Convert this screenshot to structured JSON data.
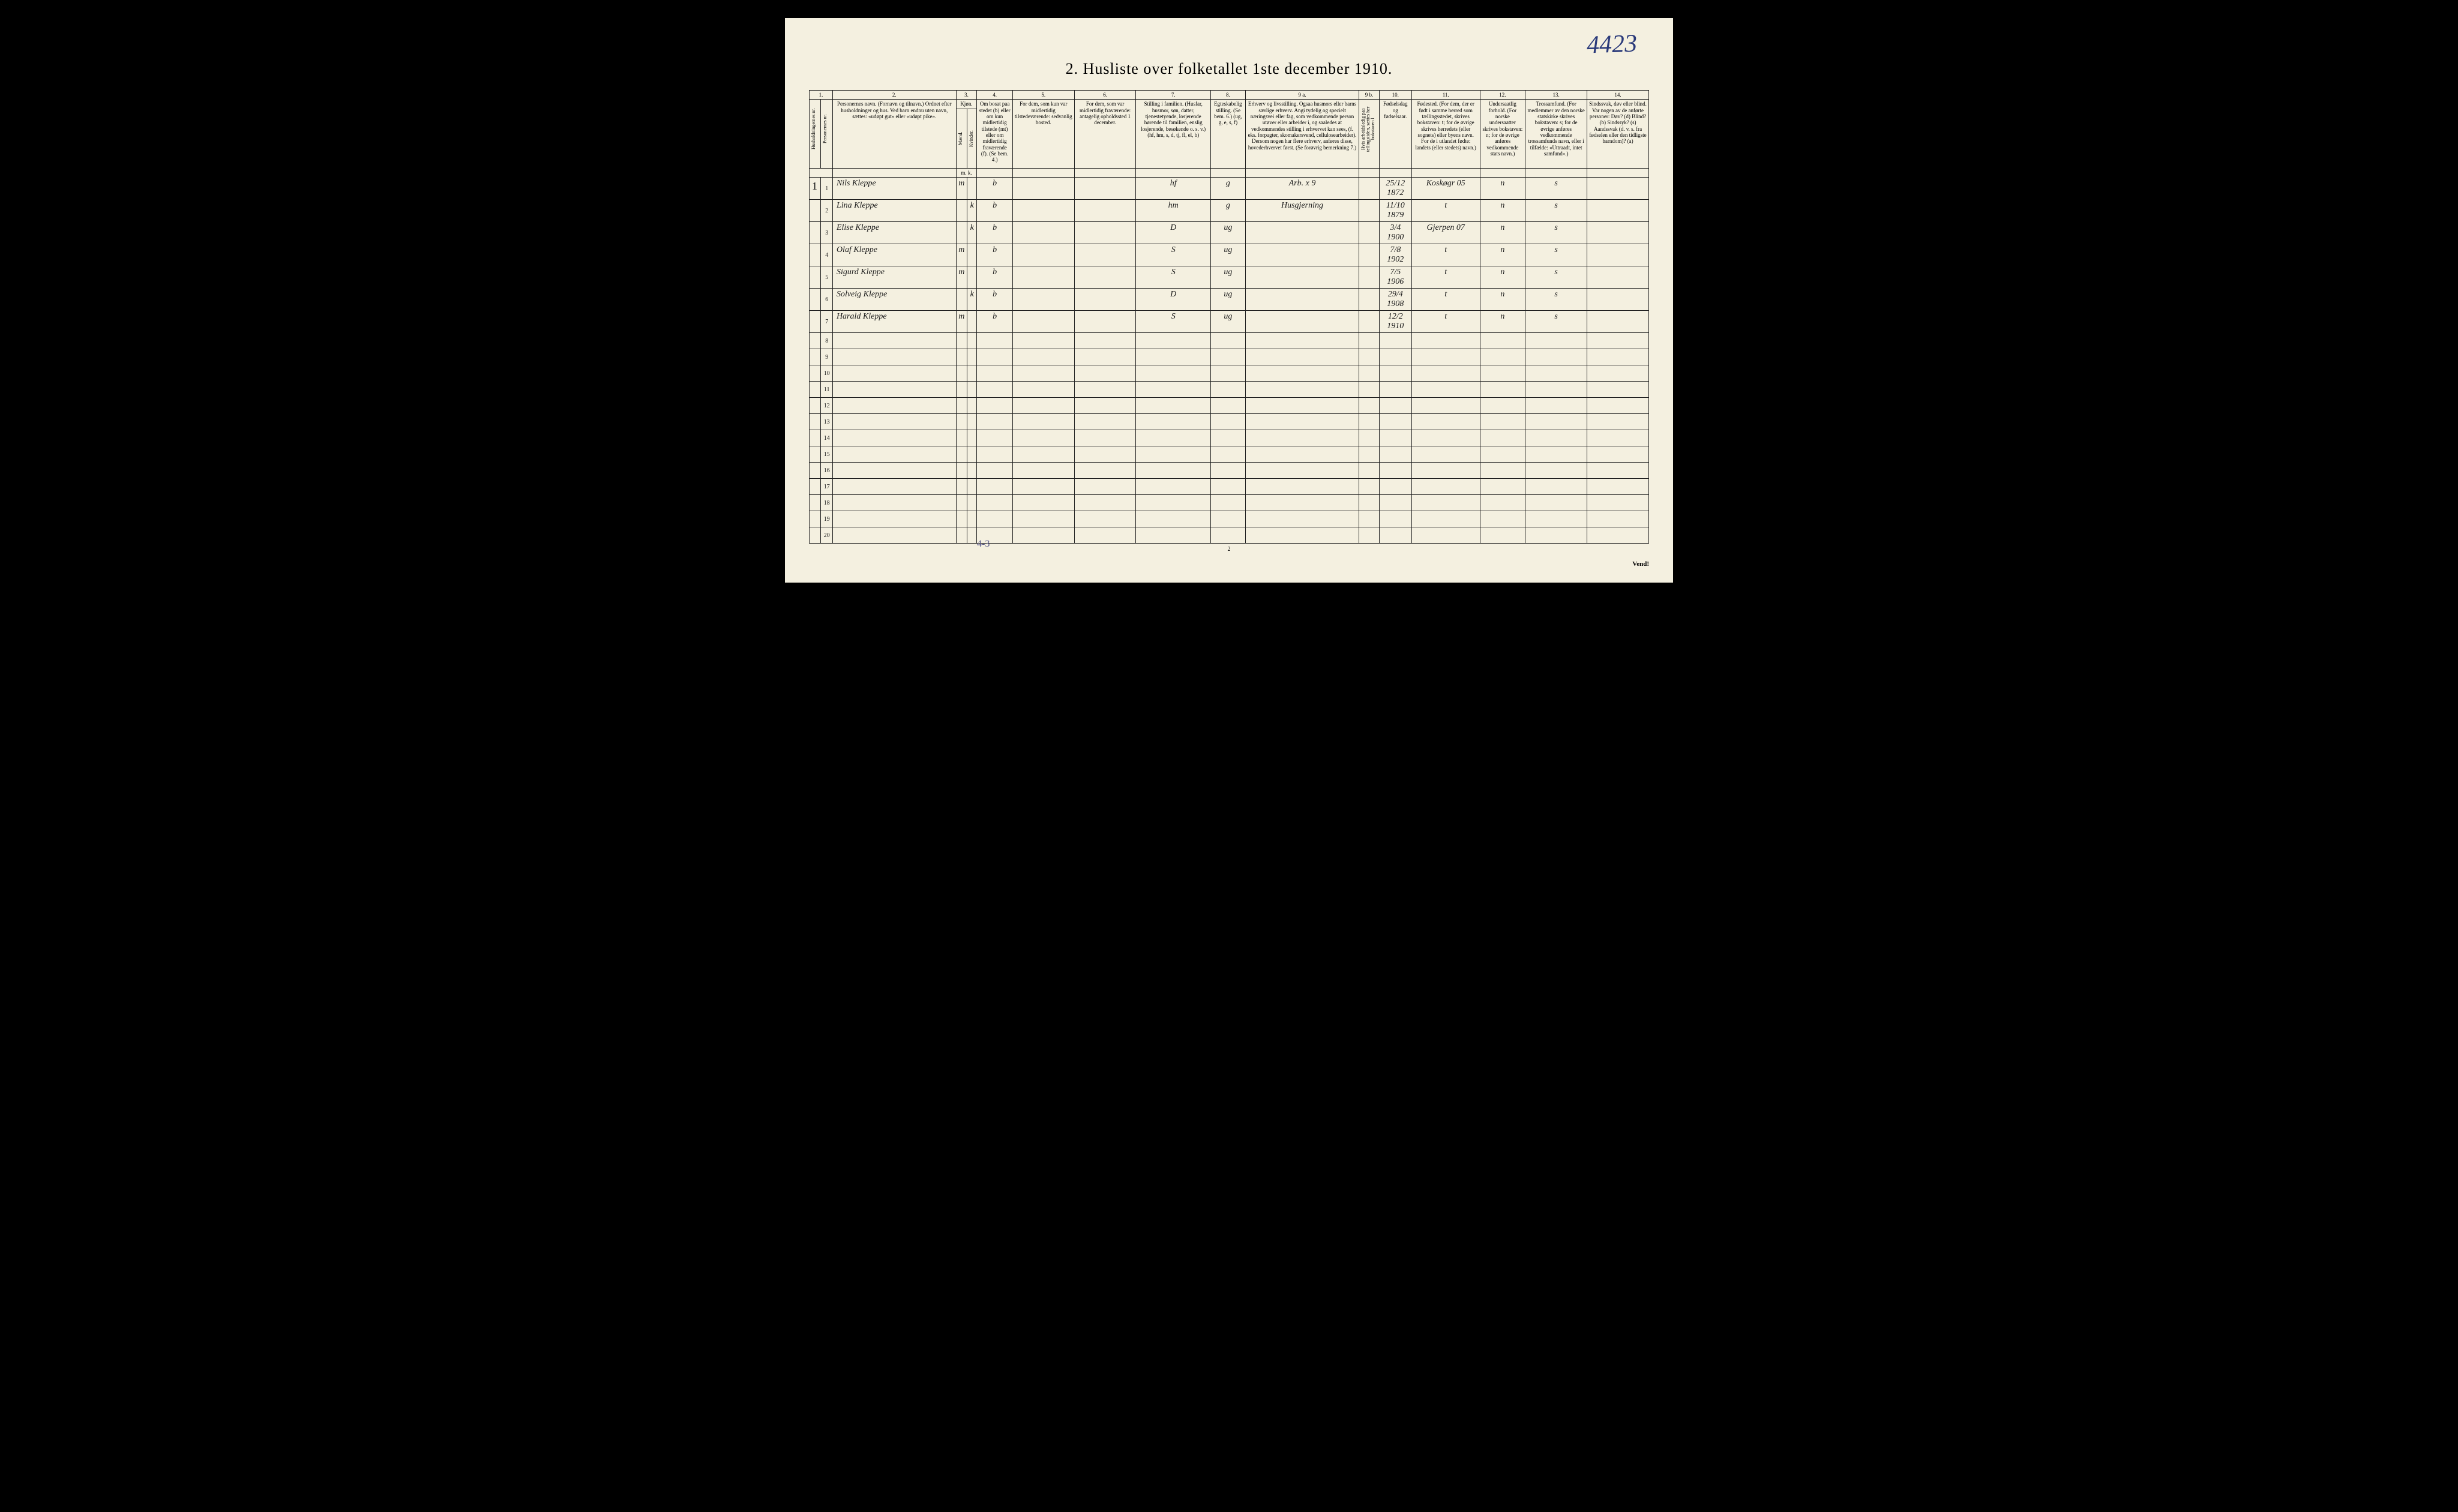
{
  "handwritten_topright": "4423",
  "title": "2.  Husliste over folketallet 1ste december 1910.",
  "margin_note": "4-3",
  "page_number": "2",
  "vend": "Vend!",
  "household_mark": "1",
  "column_numbers": [
    "1.",
    "2.",
    "3.",
    "4.",
    "5.",
    "6.",
    "7.",
    "8.",
    "9 a.",
    "9 b.",
    "10.",
    "11.",
    "12.",
    "13.",
    "14."
  ],
  "headers": {
    "c1a": "Husholdningernes nr.",
    "c1b": "Personernes nr.",
    "c2": "Personernes navn.\n(Fornavn og tilnavn.)\nOrdnet efter husholdninger og hus.\nVed barn endnu uten navn, sættes: «udøpt gut» eller «udøpt pike».",
    "c3": "Kjøn.",
    "c3a": "Mænd.",
    "c3b": "Kvinder.",
    "c3_mk": "m. k.",
    "c4": "Om bosat paa stedet (b) eller om kun midlertidig tilstede (mt) eller om midlertidig fraværende (f).\n(Se bem. 4.)",
    "c5": "For dem, som kun var midlertidig tilstedeværende:\nsedvanlig bosted.",
    "c6": "For dem, som var midlertidig fraværende:\nantagelig opholdssted 1 december.",
    "c7": "Stilling i familien.\n(Husfar, husmor, søn, datter, tjenestetyende, losjerende hørende til familien, enslig losjerende, besøkende o. s. v.)\n(hf, hm, s, d, tj, fl, el, b)",
    "c8": "Egteskabelig stilling.\n(Se bem. 6.)\n(ug, g, e, s, f)",
    "c9a": "Erhverv og livsstilling.\nOgsaa husmors eller barns særlige erhverv.\nAngi tydelig og specielt næringsvei eller fag, som vedkommende person utøver eller arbeider i, og saaledes at vedkommendes stilling i erhvervet kan sees, (f. eks. forpagter, skomakersvend, cellulosearbeider). Dersom nogen har flere erhverv, anføres disse, hovederhvervet først.\n(Se forøvrig bemerkning 7.)",
    "c9b": "Hvis arbeidsledig paa tellingstiden, sættes her bokstaven l",
    "c10": "Fødselsdag og fødselsaar.",
    "c11": "Fødested.\n(For dem, der er født i samme herred som tællingsstedet, skrives bokstaven: t; for de øvrige skrives herredets (eller sognets) eller byens navn.\nFor de i utlandet fødte: landets (eller stedets) navn.)",
    "c12": "Undersaatlig forhold.\n(For norske undersaatter skrives bokstaven: n; for de øvrige anføres vedkommende stats navn.)",
    "c13": "Trossamfund.\n(For medlemmer av den norske statskirke skrives bokstaven: s; for de øvrige anføres vedkommende trossamfunds navn, eller i tilfælde: «Uttraadt, intet samfund».)",
    "c14": "Sindssvak, døv eller blind.\nVar nogen av de anførte personer:\nDøv? (d)\nBlind? (b)\nSindssyk? (s)\nAandssvak (d. v. s. fra fødselen eller den tidligste barndom)? (a)"
  },
  "rows": [
    {
      "n": "1",
      "name": "Nils     Kleppe",
      "sex_m": "m",
      "sex_k": "",
      "bosat": "b",
      "c5": "",
      "c6": "",
      "c7": "hf",
      "c8": "g",
      "c9a": "Arb.     x 9",
      "c9b": "",
      "c10": "25/12 1872",
      "c11": "Koskøgr   05",
      "c12": "n",
      "c13": "s",
      "c14": ""
    },
    {
      "n": "2",
      "name": "Lina     Kleppe",
      "sex_m": "",
      "sex_k": "k",
      "bosat": "b",
      "c5": "",
      "c6": "",
      "c7": "hm",
      "c8": "g",
      "c9a": "Husgjerning",
      "c9b": "",
      "c10": "11/10 1879",
      "c11": "t",
      "c12": "n",
      "c13": "s",
      "c14": ""
    },
    {
      "n": "3",
      "name": "Elise    Kleppe",
      "sex_m": "",
      "sex_k": "k",
      "bosat": "b",
      "c5": "",
      "c6": "",
      "c7": "D",
      "c8": "ug",
      "c9a": "",
      "c9b": "",
      "c10": "3/4 1900",
      "c11": "Gjerpen 07",
      "c12": "n",
      "c13": "s",
      "c14": ""
    },
    {
      "n": "4",
      "name": "Olaf     Kleppe",
      "sex_m": "m",
      "sex_k": "",
      "bosat": "b",
      "c5": "",
      "c6": "",
      "c7": "S",
      "c8": "ug",
      "c9a": "",
      "c9b": "",
      "c10": "7/8 1902",
      "c11": "t",
      "c12": "n",
      "c13": "s",
      "c14": ""
    },
    {
      "n": "5",
      "name": "Sigurd   Kleppe",
      "sex_m": "m",
      "sex_k": "",
      "bosat": "b",
      "c5": "",
      "c6": "",
      "c7": "S",
      "c8": "ug",
      "c9a": "",
      "c9b": "",
      "c10": "7/5 1906",
      "c11": "t",
      "c12": "n",
      "c13": "s",
      "c14": ""
    },
    {
      "n": "6",
      "name": "Solveig  Kleppe",
      "sex_m": "",
      "sex_k": "k",
      "bosat": "b",
      "c5": "",
      "c6": "",
      "c7": "D",
      "c8": "ug",
      "c9a": "",
      "c9b": "",
      "c10": "29/4 1908",
      "c11": "t",
      "c12": "n",
      "c13": "s",
      "c14": ""
    },
    {
      "n": "7",
      "name": "Harald   Kleppe",
      "sex_m": "m",
      "sex_k": "",
      "bosat": "b",
      "c5": "",
      "c6": "",
      "c7": "S",
      "c8": "ug",
      "c9a": "",
      "c9b": "",
      "c10": "12/2 1910",
      "c11": "t",
      "c12": "n",
      "c13": "s",
      "c14": ""
    },
    {
      "n": "8"
    },
    {
      "n": "9"
    },
    {
      "n": "10"
    },
    {
      "n": "11"
    },
    {
      "n": "12"
    },
    {
      "n": "13"
    },
    {
      "n": "14"
    },
    {
      "n": "15"
    },
    {
      "n": "16"
    },
    {
      "n": "17"
    },
    {
      "n": "18"
    },
    {
      "n": "19"
    },
    {
      "n": "20"
    }
  ],
  "col_widths": {
    "c1a": "18px",
    "c1b": "18px",
    "c2": "190px",
    "c3a": "14px",
    "c3b": "14px",
    "c4": "55px",
    "c5": "95px",
    "c6": "95px",
    "c7": "115px",
    "c8": "45px",
    "c9a": "175px",
    "c9b": "18px",
    "c10": "50px",
    "c11": "105px",
    "c12": "70px",
    "c13": "95px",
    "c14": "95px"
  },
  "colors": {
    "paper": "#f4f0e0",
    "ink": "#1a1a1a",
    "pencil_blue": "#2a3a7a",
    "background": "#000000"
  }
}
